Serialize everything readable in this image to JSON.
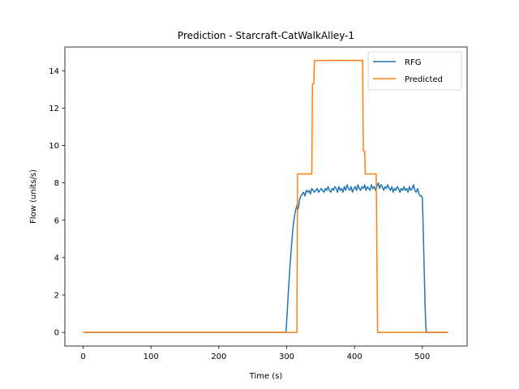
{
  "chart_data": {
    "type": "line",
    "title": "Prediction - Starcraft-CatWalkAlley-1",
    "xlabel": "Time (s)",
    "ylabel": "Flow (units/s)",
    "xlim": [
      -27,
      566
    ],
    "ylim": [
      -0.73,
      15.27
    ],
    "xticks": [
      0,
      100,
      200,
      300,
      400,
      500
    ],
    "yticks": [
      0,
      2,
      4,
      6,
      8,
      10,
      12,
      14
    ],
    "grid": false,
    "legend_position": "top-right",
    "series": [
      {
        "name": "RFG",
        "color": "#1f77b4",
        "points": [
          [
            0,
            0
          ],
          [
            299,
            0
          ],
          [
            301,
            1.2
          ],
          [
            303,
            2.5
          ],
          [
            305,
            3.6
          ],
          [
            307,
            4.6
          ],
          [
            309,
            5.5
          ],
          [
            311,
            6.1
          ],
          [
            313,
            6.5
          ],
          [
            315,
            6.8
          ],
          [
            317,
            6.6
          ],
          [
            319,
            7.1
          ],
          [
            321,
            7.3
          ],
          [
            323,
            7.4
          ],
          [
            325,
            7.5
          ],
          [
            327,
            7.3
          ],
          [
            329,
            7.6
          ],
          [
            331,
            7.5
          ],
          [
            333,
            7.6
          ],
          [
            335,
            7.4
          ],
          [
            337,
            7.7
          ],
          [
            339,
            7.6
          ],
          [
            341,
            7.5
          ],
          [
            343,
            7.6
          ],
          [
            345,
            7.7
          ],
          [
            347,
            7.5
          ],
          [
            349,
            7.6
          ],
          [
            351,
            7.7
          ],
          [
            353,
            7.6
          ],
          [
            355,
            7.5
          ],
          [
            357,
            7.7
          ],
          [
            359,
            7.6
          ],
          [
            361,
            7.8
          ],
          [
            363,
            7.6
          ],
          [
            365,
            7.5
          ],
          [
            367,
            7.7
          ],
          [
            369,
            7.6
          ],
          [
            371,
            7.8
          ],
          [
            373,
            7.7
          ],
          [
            375,
            7.5
          ],
          [
            377,
            7.8
          ],
          [
            379,
            7.6
          ],
          [
            381,
            7.7
          ],
          [
            383,
            7.5
          ],
          [
            385,
            7.8
          ],
          [
            387,
            7.6
          ],
          [
            389,
            7.9
          ],
          [
            391,
            7.7
          ],
          [
            393,
            7.6
          ],
          [
            395,
            7.8
          ],
          [
            397,
            7.5
          ],
          [
            399,
            7.7
          ],
          [
            401,
            7.8
          ],
          [
            403,
            7.6
          ],
          [
            405,
            7.9
          ],
          [
            407,
            7.7
          ],
          [
            409,
            7.6
          ],
          [
            411,
            7.8
          ],
          [
            413,
            7.7
          ],
          [
            415,
            7.9
          ],
          [
            417,
            7.6
          ],
          [
            419,
            7.8
          ],
          [
            421,
            7.7
          ],
          [
            423,
            7.6
          ],
          [
            425,
            7.9
          ],
          [
            427,
            7.7
          ],
          [
            429,
            7.8
          ],
          [
            431,
            7.6
          ],
          [
            433,
            7.8
          ],
          [
            435,
            8.0
          ],
          [
            437,
            7.7
          ],
          [
            439,
            7.9
          ],
          [
            441,
            7.8
          ],
          [
            443,
            7.6
          ],
          [
            445,
            7.8
          ],
          [
            447,
            7.7
          ],
          [
            449,
            7.9
          ],
          [
            451,
            7.7
          ],
          [
            453,
            7.6
          ],
          [
            455,
            7.8
          ],
          [
            457,
            7.5
          ],
          [
            459,
            7.7
          ],
          [
            461,
            7.6
          ],
          [
            463,
            7.8
          ],
          [
            465,
            7.7
          ],
          [
            467,
            7.5
          ],
          [
            469,
            7.7
          ],
          [
            471,
            7.6
          ],
          [
            473,
            7.8
          ],
          [
            475,
            7.6
          ],
          [
            477,
            7.7
          ],
          [
            479,
            7.5
          ],
          [
            481,
            7.8
          ],
          [
            483,
            7.6
          ],
          [
            485,
            7.7
          ],
          [
            487,
            7.9
          ],
          [
            489,
            7.6
          ],
          [
            491,
            7.5
          ],
          [
            493,
            7.7
          ],
          [
            495,
            7.4
          ],
          [
            497,
            7.3
          ],
          [
            499,
            7.3
          ],
          [
            500,
            7.2
          ],
          [
            501,
            6.0
          ],
          [
            502,
            4.5
          ],
          [
            503,
            3.0
          ],
          [
            504,
            1.5
          ],
          [
            505,
            0.4
          ],
          [
            506,
            0
          ],
          [
            538,
            0
          ]
        ]
      },
      {
        "name": "Predicted",
        "color": "#ff7f0e",
        "points": [
          [
            0,
            0
          ],
          [
            315,
            0
          ],
          [
            316,
            8.48
          ],
          [
            337,
            8.48
          ],
          [
            338,
            13.3
          ],
          [
            340,
            13.3
          ],
          [
            341,
            14.55
          ],
          [
            412,
            14.55
          ],
          [
            413,
            9.7
          ],
          [
            415,
            9.7
          ],
          [
            416,
            8.48
          ],
          [
            432,
            8.48
          ],
          [
            434,
            0
          ],
          [
            538,
            0
          ]
        ]
      }
    ]
  }
}
